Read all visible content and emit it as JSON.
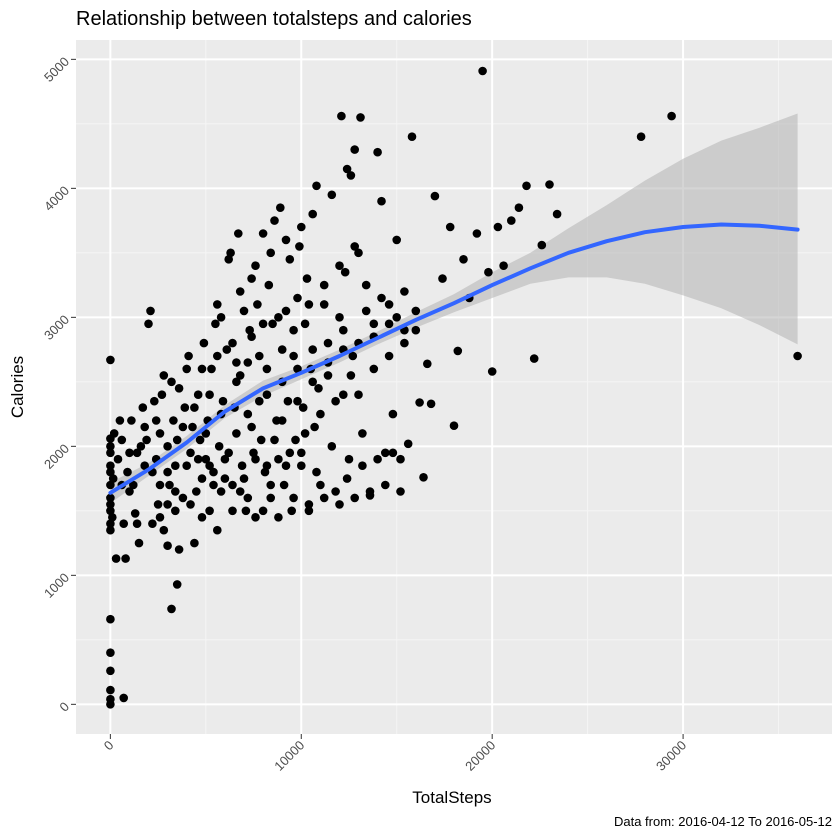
{
  "chart_data": {
    "type": "scatter",
    "title": "Relationship between totalsteps and calories",
    "xlabel": "TotalSteps",
    "ylabel": "Calories",
    "caption": "Data from: 2016-04-12 To 2016-05-12",
    "xlim": [
      -1800,
      37800
    ],
    "ylim": [
      -230,
      5150
    ],
    "x_ticks": [
      0,
      10000,
      20000,
      30000
    ],
    "x_tick_labels": [
      "0",
      "10000",
      "20000",
      "30000"
    ],
    "y_ticks": [
      0,
      1000,
      2000,
      3000,
      4000,
      5000
    ],
    "y_tick_labels": [
      "0",
      "1000",
      "2000",
      "3000",
      "4000",
      "5000"
    ],
    "grid": true,
    "legend": "none",
    "colors": {
      "panel": "#ebebeb",
      "grid_major": "#ffffff",
      "grid_minor": "#f5f5f5",
      "points": "#000000",
      "smooth": "#3366ff",
      "ribbon": "#b3b3b3"
    },
    "points": [
      [
        0,
        0
      ],
      [
        0,
        40
      ],
      [
        0,
        110
      ],
      [
        0,
        260
      ],
      [
        0,
        400
      ],
      [
        0,
        660
      ],
      [
        0,
        1350
      ],
      [
        0,
        1500
      ],
      [
        0,
        1600
      ],
      [
        0,
        1700
      ],
      [
        0,
        1800
      ],
      [
        0,
        1850
      ],
      [
        0,
        1950
      ],
      [
        0,
        2000
      ],
      [
        0,
        2060
      ],
      [
        0,
        2670
      ],
      [
        0,
        1400
      ],
      [
        0,
        1550
      ],
      [
        100,
        1450
      ],
      [
        150,
        1750
      ],
      [
        200,
        2100
      ],
      [
        300,
        1130
      ],
      [
        400,
        1900
      ],
      [
        500,
        2200
      ],
      [
        600,
        2050
      ],
      [
        700,
        1400
      ],
      [
        800,
        1130
      ],
      [
        700,
        50
      ],
      [
        900,
        1800
      ],
      [
        1000,
        1950
      ],
      [
        1100,
        2200
      ],
      [
        1200,
        1700
      ],
      [
        1300,
        1480
      ],
      [
        1400,
        1400
      ],
      [
        1500,
        1250
      ],
      [
        1600,
        2000
      ],
      [
        1700,
        2300
      ],
      [
        1800,
        1850
      ],
      [
        1900,
        2050
      ],
      [
        2000,
        2950
      ],
      [
        2100,
        3050
      ],
      [
        2200,
        1400
      ],
      [
        2300,
        2350
      ],
      [
        2400,
        1900
      ],
      [
        2500,
        1550
      ],
      [
        2600,
        2100
      ],
      [
        2700,
        2400
      ],
      [
        2800,
        1350
      ],
      [
        3000,
        1800
      ],
      [
        3100,
        1700
      ],
      [
        3200,
        2500
      ],
      [
        3300,
        2200
      ],
      [
        3400,
        1500
      ],
      [
        3500,
        2050
      ],
      [
        3600,
        1200
      ],
      [
        3200,
        740
      ],
      [
        3500,
        930
      ],
      [
        3000,
        1230
      ],
      [
        3800,
        1600
      ],
      [
        3900,
        2300
      ],
      [
        4000,
        1850
      ],
      [
        4100,
        2700
      ],
      [
        4200,
        1950
      ],
      [
        4300,
        2150
      ],
      [
        4400,
        1250
      ],
      [
        4500,
        1650
      ],
      [
        4600,
        2400
      ],
      [
        4700,
        2050
      ],
      [
        4800,
        1750
      ],
      [
        4900,
        2800
      ],
      [
        5000,
        1900
      ],
      [
        5100,
        2200
      ],
      [
        5200,
        1500
      ],
      [
        5300,
        2600
      ],
      [
        5400,
        1800
      ],
      [
        5500,
        2950
      ],
      [
        5600,
        3100
      ],
      [
        5700,
        2000
      ],
      [
        5800,
        1650
      ],
      [
        5900,
        2350
      ],
      [
        6000,
        1900
      ],
      [
        6100,
        2750
      ],
      [
        6200,
        3450
      ],
      [
        6300,
        3500
      ],
      [
        6400,
        1700
      ],
      [
        6500,
        2300
      ],
      [
        6600,
        2100
      ],
      [
        6700,
        3650
      ],
      [
        6800,
        2550
      ],
      [
        6900,
        1850
      ],
      [
        7000,
        3050
      ],
      [
        7100,
        1500
      ],
      [
        7200,
        2250
      ],
      [
        7300,
        2900
      ],
      [
        7400,
        3300
      ],
      [
        7500,
        1950
      ],
      [
        7600,
        1450
      ],
      [
        7700,
        3100
      ],
      [
        7800,
        2700
      ],
      [
        7900,
        2050
      ],
      [
        8000,
        3650
      ],
      [
        8100,
        1800
      ],
      [
        8200,
        2400
      ],
      [
        8300,
        3250
      ],
      [
        8400,
        1600
      ],
      [
        8500,
        2950
      ],
      [
        8600,
        3750
      ],
      [
        8700,
        2200
      ],
      [
        8800,
        1900
      ],
      [
        8900,
        3850
      ],
      [
        9000,
        2500
      ],
      [
        9100,
        1700
      ],
      [
        9200,
        3050
      ],
      [
        9300,
        2350
      ],
      [
        9400,
        3450
      ],
      [
        9500,
        1500
      ],
      [
        9600,
        2700
      ],
      [
        9700,
        2050
      ],
      [
        9800,
        3150
      ],
      [
        9900,
        3550
      ],
      [
        10000,
        1850
      ],
      [
        10100,
        2300
      ],
      [
        10200,
        2950
      ],
      [
        10300,
        3300
      ],
      [
        10400,
        1550
      ],
      [
        10500,
        2600
      ],
      [
        10600,
        3800
      ],
      [
        10700,
        2150
      ],
      [
        10800,
        4020
      ],
      [
        10900,
        2450
      ],
      [
        11000,
        1700
      ],
      [
        11200,
        3100
      ],
      [
        11400,
        2800
      ],
      [
        11600,
        3950
      ],
      [
        11800,
        1650
      ],
      [
        12000,
        3000
      ],
      [
        12100,
        4560
      ],
      [
        12200,
        2400
      ],
      [
        12300,
        3350
      ],
      [
        12400,
        4150
      ],
      [
        12500,
        1900
      ],
      [
        12600,
        4100
      ],
      [
        12700,
        2700
      ],
      [
        12800,
        4300
      ],
      [
        13000,
        3500
      ],
      [
        13100,
        4550
      ],
      [
        13200,
        2100
      ],
      [
        13400,
        3250
      ],
      [
        13600,
        1620
      ],
      [
        13800,
        2600
      ],
      [
        14000,
        4280
      ],
      [
        14200,
        3900
      ],
      [
        14400,
        1950
      ],
      [
        14600,
        3100
      ],
      [
        14800,
        2250
      ],
      [
        15000,
        3600
      ],
      [
        15200,
        1900
      ],
      [
        15400,
        2800
      ],
      [
        15600,
        2020
      ],
      [
        15800,
        4400
      ],
      [
        16000,
        3050
      ],
      [
        16200,
        2340
      ],
      [
        16400,
        1760
      ],
      [
        16600,
        2640
      ],
      [
        16800,
        2330
      ],
      [
        17000,
        3940
      ],
      [
        17400,
        3300
      ],
      [
        17800,
        3700
      ],
      [
        18000,
        2160
      ],
      [
        18200,
        2740
      ],
      [
        18500,
        3450
      ],
      [
        18800,
        3150
      ],
      [
        19200,
        3650
      ],
      [
        19500,
        4910
      ],
      [
        19800,
        3350
      ],
      [
        20000,
        2580
      ],
      [
        20300,
        3700
      ],
      [
        20600,
        3400
      ],
      [
        21000,
        3750
      ],
      [
        21400,
        3850
      ],
      [
        21800,
        4020
      ],
      [
        22200,
        2680
      ],
      [
        22600,
        3560
      ],
      [
        23000,
        4030
      ],
      [
        23400,
        3800
      ],
      [
        27800,
        4400
      ],
      [
        29400,
        4560
      ],
      [
        36000,
        2700
      ],
      [
        2200,
        1800
      ],
      [
        2600,
        1700
      ],
      [
        3000,
        2000
      ],
      [
        3400,
        1650
      ],
      [
        3800,
        2150
      ],
      [
        4200,
        1550
      ],
      [
        4600,
        1900
      ],
      [
        5000,
        2100
      ],
      [
        5400,
        1700
      ],
      [
        5800,
        2250
      ],
      [
        6200,
        1950
      ],
      [
        6600,
        2500
      ],
      [
        7000,
        1750
      ],
      [
        7400,
        2150
      ],
      [
        7800,
        2350
      ],
      [
        8200,
        1850
      ],
      [
        8600,
        2050
      ],
      [
        9000,
        2200
      ],
      [
        9400,
        1950
      ],
      [
        9800,
        2350
      ],
      [
        10200,
        2100
      ],
      [
        10600,
        2500
      ],
      [
        11000,
        2250
      ],
      [
        11400,
        2650
      ],
      [
        11800,
        2350
      ],
      [
        12200,
        2900
      ],
      [
        12600,
        2550
      ],
      [
        13000,
        2800
      ],
      [
        13400,
        3050
      ],
      [
        13800,
        2850
      ],
      [
        14200,
        3150
      ],
      [
        14600,
        2950
      ],
      [
        15000,
        3000
      ],
      [
        15400,
        3200
      ],
      [
        5600,
        2700
      ],
      [
        6400,
        2800
      ],
      [
        7200,
        2650
      ],
      [
        8000,
        2950
      ],
      [
        8800,
        3000
      ],
      [
        9600,
        2900
      ],
      [
        10400,
        3100
      ],
      [
        11200,
        3250
      ],
      [
        12000,
        3400
      ],
      [
        12800,
        3550
      ],
      [
        6800,
        3200
      ],
      [
        7600,
        3400
      ],
      [
        8400,
        3500
      ],
      [
        9200,
        3600
      ],
      [
        10000,
        3700
      ],
      [
        4400,
        2300
      ],
      [
        4800,
        2600
      ],
      [
        5200,
        2400
      ],
      [
        3600,
        2450
      ],
      [
        4000,
        2600
      ],
      [
        2800,
        2550
      ],
      [
        2400,
        2200
      ],
      [
        1800,
        2150
      ],
      [
        1400,
        1950
      ],
      [
        1000,
        1650
      ],
      [
        600,
        1700
      ],
      [
        5800,
        3000
      ],
      [
        6600,
        2650
      ],
      [
        7400,
        2850
      ],
      [
        8200,
        2600
      ],
      [
        9000,
        2750
      ],
      [
        9800,
        2600
      ],
      [
        10600,
        2750
      ],
      [
        11400,
        2550
      ],
      [
        12200,
        2750
      ],
      [
        13000,
        2400
      ],
      [
        13800,
        2950
      ],
      [
        14600,
        2700
      ],
      [
        15400,
        2900
      ],
      [
        16000,
        2900
      ],
      [
        5200,
        1850
      ],
      [
        6000,
        1750
      ],
      [
        6800,
        1650
      ],
      [
        7600,
        1900
      ],
      [
        8400,
        1700
      ],
      [
        9200,
        1850
      ],
      [
        10000,
        1950
      ],
      [
        10800,
        1800
      ],
      [
        11600,
        2000
      ],
      [
        12400,
        1750
      ],
      [
        13200,
        1850
      ],
      [
        14000,
        1900
      ],
      [
        14800,
        1950
      ],
      [
        3400,
        1850
      ],
      [
        3000,
        1550
      ],
      [
        2600,
        1450
      ],
      [
        4800,
        1450
      ],
      [
        5600,
        1350
      ],
      [
        6400,
        1500
      ],
      [
        7200,
        1600
      ],
      [
        8000,
        1500
      ],
      [
        8800,
        1450
      ],
      [
        9600,
        1600
      ],
      [
        10400,
        1500
      ],
      [
        11200,
        1600
      ],
      [
        12000,
        1550
      ],
      [
        12800,
        1600
      ],
      [
        13600,
        1650
      ],
      [
        14400,
        1700
      ],
      [
        15200,
        1650
      ]
    ],
    "smooth_x": [
      0,
      2000,
      4000,
      6000,
      8000,
      10000,
      12000,
      14000,
      16000,
      18000,
      20000,
      22000,
      24000,
      26000,
      28000,
      30000,
      32000,
      34000,
      36000
    ],
    "smooth_y": [
      1640,
      1820,
      2030,
      2270,
      2450,
      2570,
      2700,
      2840,
      2980,
      3110,
      3250,
      3380,
      3500,
      3590,
      3660,
      3700,
      3720,
      3710,
      3680
    ],
    "ribbon_lower": [
      1560,
      1770,
      1980,
      2220,
      2390,
      2520,
      2650,
      2790,
      2920,
      3040,
      3150,
      3260,
      3310,
      3310,
      3260,
      3170,
      3070,
      2940,
      2790
    ],
    "ribbon_upper": [
      1720,
      1870,
      2080,
      2320,
      2510,
      2620,
      2750,
      2890,
      3040,
      3180,
      3350,
      3500,
      3690,
      3870,
      4060,
      4230,
      4370,
      4470,
      4580
    ]
  }
}
